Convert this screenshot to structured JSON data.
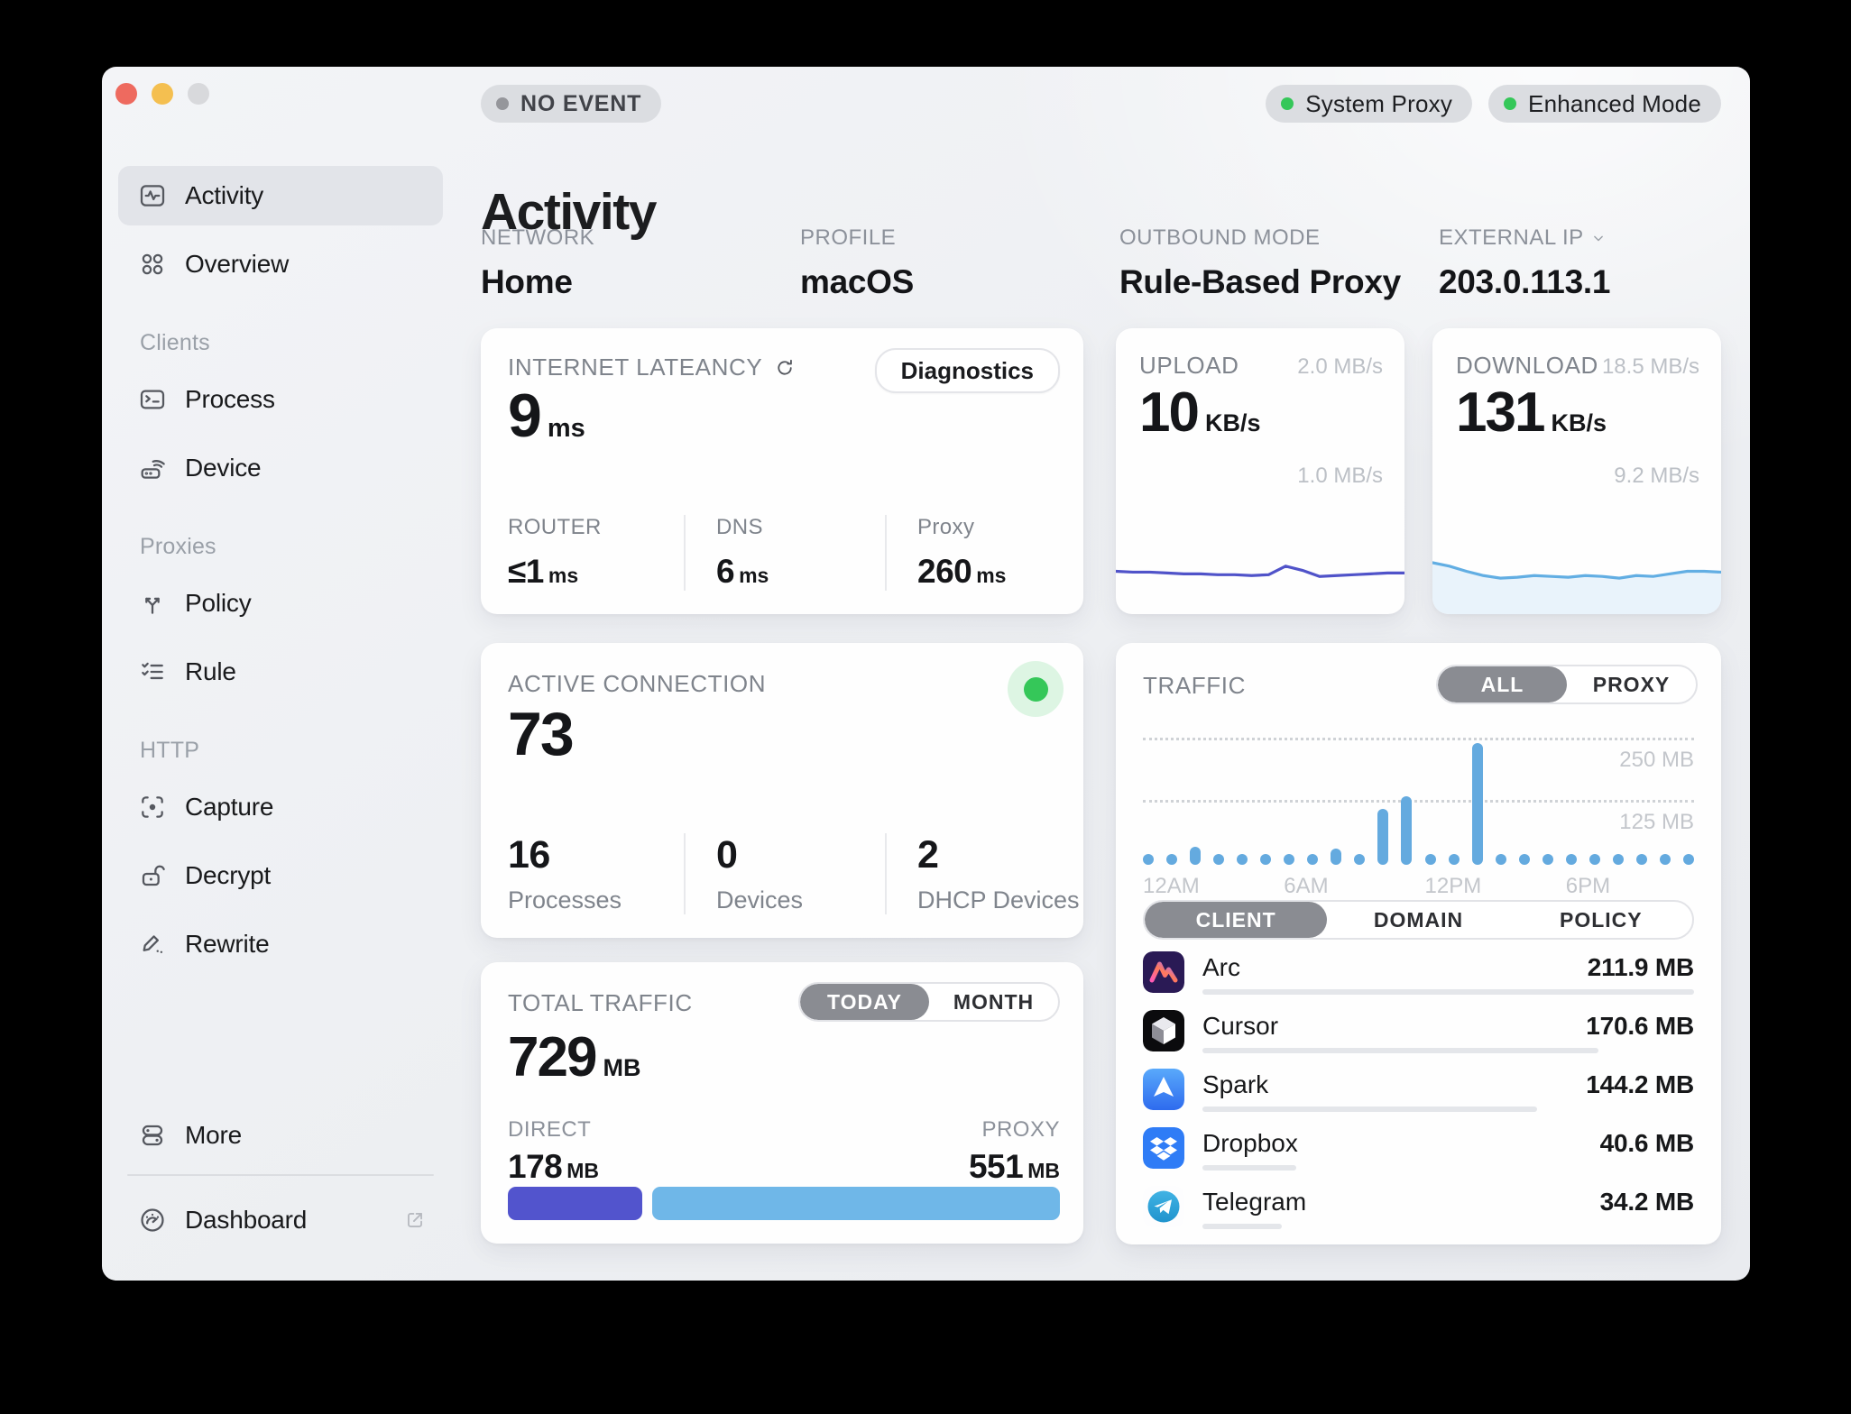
{
  "colors": {
    "bar_blue": "#64aadf",
    "upload_line": "#5053c9",
    "download_line": "#62aee3",
    "download_fill": "#e9f3fb",
    "direct_bar": "#5254cd",
    "proxy_bar": "#6fb7e8",
    "status_green": "#35c759",
    "event_dot_gray": "#95969b"
  },
  "titlebar": {
    "event_badge": "NO EVENT",
    "status_pills": [
      {
        "label": "System Proxy"
      },
      {
        "label": "Enhanced Mode"
      }
    ]
  },
  "sidebar": {
    "sections": [
      {
        "header": "",
        "items": [
          {
            "label": "Activity",
            "icon": "activity",
            "active": true
          },
          {
            "label": "Overview",
            "icon": "overview",
            "active": false
          }
        ]
      },
      {
        "header": "Clients",
        "items": [
          {
            "label": "Process",
            "icon": "process",
            "active": false
          },
          {
            "label": "Device",
            "icon": "device",
            "active": false
          }
        ]
      },
      {
        "header": "Proxies",
        "items": [
          {
            "label": "Policy",
            "icon": "policy",
            "active": false
          },
          {
            "label": "Rule",
            "icon": "rule",
            "active": false
          }
        ]
      },
      {
        "header": "HTTP",
        "items": [
          {
            "label": "Capture",
            "icon": "capture",
            "active": false
          },
          {
            "label": "Decrypt",
            "icon": "decrypt",
            "active": false
          },
          {
            "label": "Rewrite",
            "icon": "rewrite",
            "active": false
          }
        ]
      }
    ],
    "footer": {
      "more": {
        "label": "More",
        "icon": "more"
      },
      "dashboard": {
        "label": "Dashboard",
        "icon": "dashboard",
        "external_icon": "external-link"
      }
    }
  },
  "header": {
    "title": "Activity",
    "meta": [
      {
        "label": "NETWORK",
        "value": "Home",
        "chevron": false
      },
      {
        "label": "PROFILE",
        "value": "macOS",
        "chevron": false
      },
      {
        "label": "OUTBOUND MODE",
        "value": "Rule-Based Proxy",
        "chevron": false
      },
      {
        "label": "EXTERNAL IP",
        "value": "203.0.113.1",
        "chevron": true
      }
    ]
  },
  "cards": {
    "latency": {
      "title": "INTERNET LATEANCY",
      "button": "Diagnostics",
      "value": "9",
      "unit": "ms",
      "stats": [
        {
          "label": "ROUTER",
          "value": "≤1",
          "unit": "ms"
        },
        {
          "label": "DNS",
          "value": "6",
          "unit": "ms"
        },
        {
          "label": "Proxy",
          "value": "260",
          "unit": "ms"
        }
      ]
    },
    "upload": {
      "title": "UPLOAD",
      "value": "10",
      "unit": "KB/s",
      "scale_top": "2.0 MB/s",
      "scale_mid": "1.0 MB/s"
    },
    "download": {
      "title": "DOWNLOAD",
      "value": "131",
      "unit": "KB/s",
      "scale_top": "18.5 MB/s",
      "scale_mid": "9.2 MB/s"
    },
    "connections": {
      "title": "ACTIVE CONNECTION",
      "value": "73",
      "stats": [
        {
          "value": "16",
          "label": "Processes"
        },
        {
          "value": "0",
          "label": "Devices"
        },
        {
          "value": "2",
          "label": "DHCP Devices"
        }
      ]
    },
    "traffic": {
      "title": "TRAFFIC",
      "mode_toggle": [
        "ALL",
        "PROXY"
      ],
      "mode_active": 0,
      "tabs": [
        "CLIENT",
        "DOMAIN",
        "POLICY"
      ],
      "tabs_active": 0,
      "clients": [
        {
          "name": "Arc",
          "icon": "arc",
          "value": "211.9 MB",
          "mb": 211.9
        },
        {
          "name": "Cursor",
          "icon": "cursor",
          "value": "170.6 MB",
          "mb": 170.6
        },
        {
          "name": "Spark",
          "icon": "spark",
          "value": "144.2 MB",
          "mb": 144.2
        },
        {
          "name": "Dropbox",
          "icon": "dropbox",
          "value": "40.6 MB",
          "mb": 40.6
        },
        {
          "name": "Telegram",
          "icon": "telegram",
          "value": "34.2 MB",
          "mb": 34.2
        }
      ]
    },
    "total": {
      "title": "TOTAL TRAFFIC",
      "period_toggle": [
        "TODAY",
        "MONTH"
      ],
      "period_active": 0,
      "value": "729",
      "unit": "MB",
      "direct": {
        "label": "DIRECT",
        "value": "178",
        "unit": "MB",
        "mb": 178
      },
      "proxy": {
        "label": "PROXY",
        "value": "551",
        "unit": "MB",
        "mb": 551
      }
    }
  },
  "chart_data": [
    {
      "name": "traffic_hourly",
      "type": "bar",
      "title": "TRAFFIC",
      "mode": "ALL",
      "x_hours": 24,
      "x_tick_labels": [
        "12AM",
        "6AM",
        "12PM",
        "6PM"
      ],
      "x_tick_hours": [
        0,
        6,
        12,
        18
      ],
      "values_mb": [
        9,
        8,
        36,
        9,
        8,
        9,
        8,
        9,
        33,
        9,
        113,
        138,
        9,
        9,
        245,
        9,
        8,
        9,
        8,
        9,
        8,
        9,
        8,
        9
      ],
      "gridlines_mb": [
        125,
        250
      ],
      "ylim": [
        0,
        265
      ],
      "grid": "dotted"
    },
    {
      "name": "upload_sparkline",
      "type": "line",
      "title": "UPLOAD",
      "current": "10 KB/s",
      "scale_labels": [
        "2.0 MB/s",
        "1.0 MB/s"
      ],
      "points_y": [
        50,
        51,
        51,
        52,
        53,
        53,
        54,
        54,
        55,
        54,
        44,
        49,
        56,
        55,
        54,
        53,
        52,
        52
      ],
      "filled": false
    },
    {
      "name": "download_sparkline",
      "type": "line",
      "title": "DOWNLOAD",
      "current": "131 KB/s",
      "scale_labels": [
        "18.5 MB/s",
        "9.2 MB/s"
      ],
      "points_y": [
        40,
        44,
        50,
        55,
        58,
        57,
        55,
        56,
        57,
        55,
        56,
        58,
        55,
        56,
        53,
        50,
        50,
        51
      ],
      "filled": true
    }
  ]
}
